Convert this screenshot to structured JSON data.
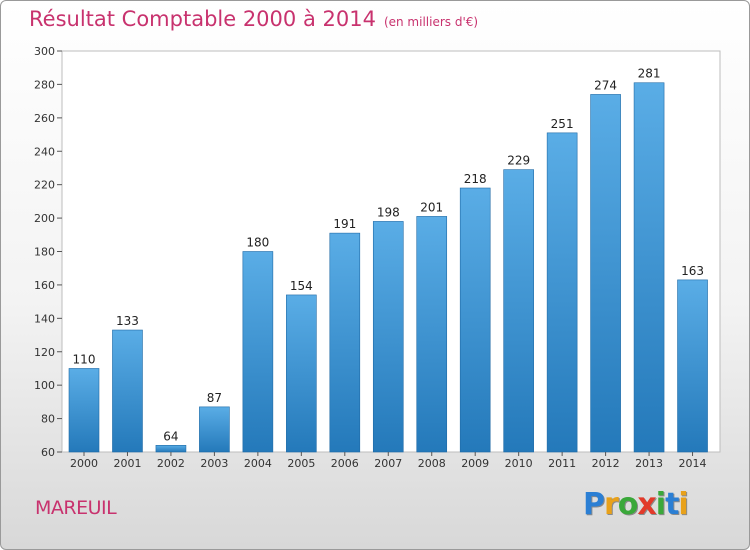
{
  "title": "Résultat Comptable 2000 à 2014",
  "subtitle": "(en milliers d'€)",
  "location": "MAREUIL",
  "logo": {
    "letters": [
      "P",
      "r",
      "o",
      "x",
      "i",
      "t",
      "i"
    ],
    "colors": [
      "#2b7fd4",
      "#e8a11a",
      "#3aa83a",
      "#e23a2a",
      "#3aa83a",
      "#2b7fd4",
      "#e8a11a"
    ]
  },
  "colors": {
    "bar_light": "#5aade6",
    "bar_dark": "#2479ba",
    "title": "#c8326e"
  },
  "chart_data": {
    "type": "bar",
    "categories": [
      "2000",
      "2001",
      "2002",
      "2003",
      "2004",
      "2005",
      "2006",
      "2007",
      "2008",
      "2009",
      "2010",
      "2011",
      "2012",
      "2013",
      "2014"
    ],
    "values": [
      110,
      133,
      64,
      87,
      180,
      154,
      191,
      198,
      201,
      218,
      229,
      251,
      274,
      281,
      163
    ],
    "value_labels": [
      "110",
      "133",
      "64",
      "87",
      "180",
      "154",
      "191",
      "198",
      "201",
      "218",
      "229",
      "251",
      "274",
      "281",
      "163"
    ],
    "ylim": [
      60,
      300
    ],
    "yticks": [
      60,
      80,
      100,
      120,
      140,
      160,
      180,
      200,
      220,
      240,
      260,
      280,
      300
    ],
    "ytick_labels": [
      "60",
      "80",
      "100",
      "120",
      "140",
      "160",
      "180",
      "200",
      "220",
      "240",
      "260",
      "280",
      "300"
    ],
    "grid": false,
    "xlabel": "",
    "ylabel": ""
  }
}
